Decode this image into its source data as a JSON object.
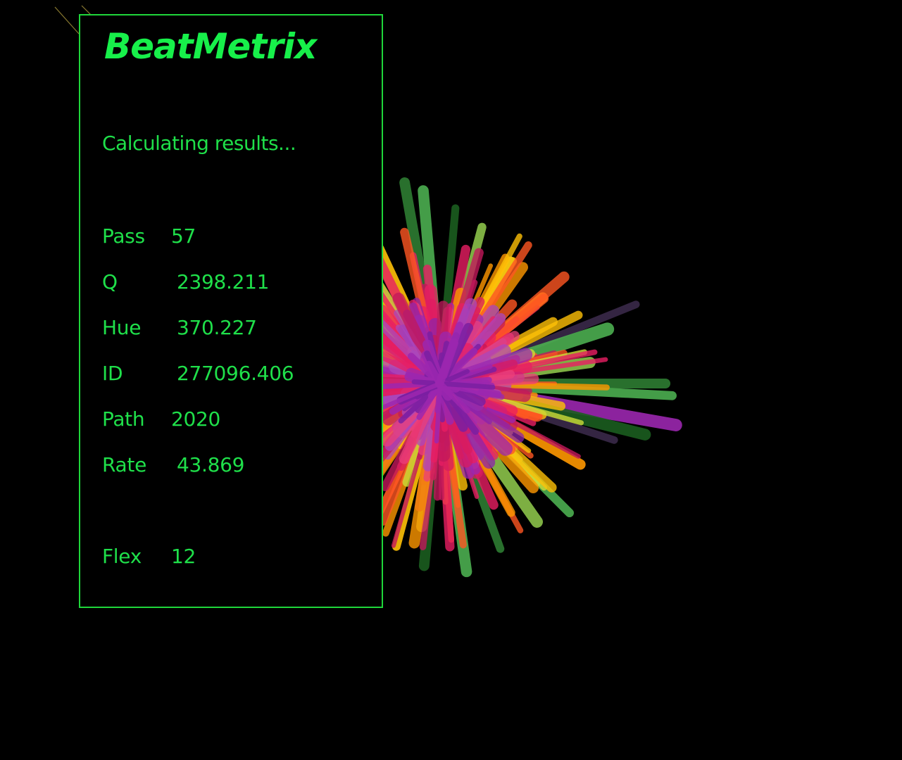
{
  "app": {
    "brand": "BeatMetrix",
    "status": "Calculating results..."
  },
  "stats": {
    "pass": {
      "label": "Pass",
      "value": "57"
    },
    "q": {
      "label": "Q",
      "value": "2398.211"
    },
    "hue": {
      "label": "Hue",
      "value": "370.227"
    },
    "id": {
      "label": "ID",
      "value": "277096.406"
    },
    "path": {
      "label": "Path",
      "value": "2020"
    },
    "rate": {
      "label": "Rate",
      "value": "43.869"
    },
    "flex": {
      "label": "Flex",
      "value": "12"
    }
  },
  "colors": {
    "accent": "#1fe04a",
    "border": "#1fd63a",
    "background": "#000000",
    "burst_palette": [
      "#c2185b",
      "#e91e63",
      "#ff5722",
      "#ff9800",
      "#ffc107",
      "#cddc39",
      "#4caf50",
      "#2e7d32",
      "#1b5e20",
      "#9c27b0",
      "#6a1b9a",
      "#8bc34a",
      "#ff7043",
      "#d81b60"
    ]
  },
  "visualizer": {
    "type": "radial-burst"
  }
}
